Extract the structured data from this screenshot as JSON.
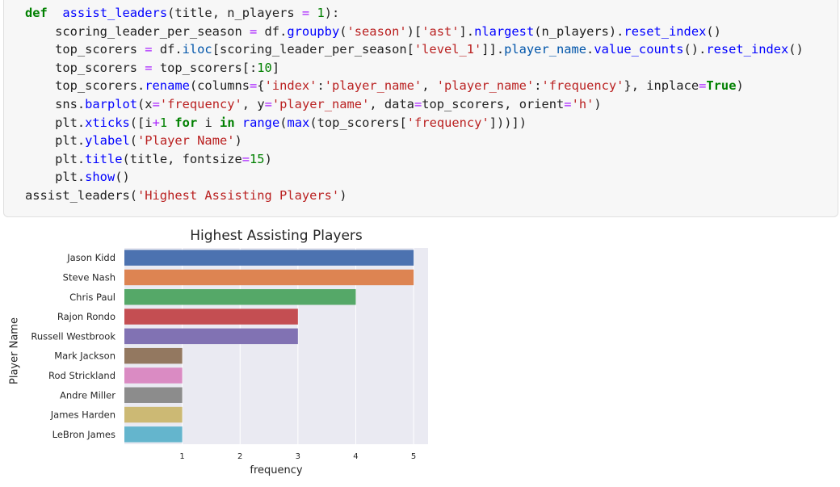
{
  "code": [
    [
      [
        "kw",
        "def"
      ],
      [
        "",
        "  "
      ],
      [
        "fn",
        "assist_leaders"
      ],
      [
        "",
        "(title, n_players "
      ],
      [
        "op",
        "="
      ],
      [
        "",
        " "
      ],
      [
        "num",
        "1"
      ],
      [
        "",
        "):"
      ]
    ],
    [
      [
        "",
        "    scoring_leader_per_season "
      ],
      [
        "op",
        "="
      ],
      [
        "",
        " df."
      ],
      [
        "fn",
        "groupby"
      ],
      [
        "",
        "("
      ],
      [
        "str",
        "'season'"
      ],
      [
        "",
        ")["
      ],
      [
        "str",
        "'ast'"
      ],
      [
        "",
        "]."
      ],
      [
        "fn",
        "nlargest"
      ],
      [
        "",
        "(n_players)."
      ],
      [
        "fn",
        "reset_index"
      ],
      [
        "",
        "()"
      ]
    ],
    [
      [
        "",
        "    top_scorers "
      ],
      [
        "op",
        "="
      ],
      [
        "",
        " df."
      ],
      [
        "attr",
        "iloc"
      ],
      [
        "",
        "[scoring_leader_per_season["
      ],
      [
        "str",
        "'level_1'"
      ],
      [
        "",
        "]]."
      ],
      [
        "attr",
        "player_name"
      ],
      [
        "",
        "."
      ],
      [
        "fn",
        "value_counts"
      ],
      [
        "",
        "()."
      ],
      [
        "fn",
        "reset_index"
      ],
      [
        "",
        "()"
      ]
    ],
    [
      [
        "",
        "    top_scorers "
      ],
      [
        "op",
        "="
      ],
      [
        "",
        " top_scorers[:"
      ],
      [
        "num",
        "10"
      ],
      [
        "",
        "]"
      ]
    ],
    [
      [
        "",
        "    top_scorers."
      ],
      [
        "fn",
        "rename"
      ],
      [
        "",
        "(columns"
      ],
      [
        "op",
        "="
      ],
      [
        "",
        "{"
      ],
      [
        "str",
        "'index'"
      ],
      [
        "",
        ":"
      ],
      [
        "str",
        "'player_name'"
      ],
      [
        "",
        ", "
      ],
      [
        "str",
        "'player_name'"
      ],
      [
        "",
        ":"
      ],
      [
        "str",
        "'frequency'"
      ],
      [
        "",
        "}, inplace"
      ],
      [
        "op",
        "="
      ],
      [
        "kw",
        "True"
      ],
      [
        "",
        ")"
      ]
    ],
    [
      [
        "",
        "    sns."
      ],
      [
        "fn",
        "barplot"
      ],
      [
        "",
        "(x"
      ],
      [
        "op",
        "="
      ],
      [
        "str",
        "'frequency'"
      ],
      [
        "",
        ", y"
      ],
      [
        "op",
        "="
      ],
      [
        "str",
        "'player_name'"
      ],
      [
        "",
        ", data"
      ],
      [
        "op",
        "="
      ],
      [
        "",
        "top_scorers, orient"
      ],
      [
        "op",
        "="
      ],
      [
        "str",
        "'h'"
      ],
      [
        "",
        ")"
      ]
    ],
    [
      [
        "",
        "    plt."
      ],
      [
        "fn",
        "xticks"
      ],
      [
        "",
        "([i"
      ],
      [
        "op",
        "+"
      ],
      [
        "num",
        "1"
      ],
      [
        "",
        " "
      ],
      [
        "kw",
        "for"
      ],
      [
        "",
        "",
        " "
      ],
      [
        "",
        "i "
      ],
      [
        "kw",
        "in"
      ],
      [
        "",
        " "
      ],
      [
        "fn",
        "range"
      ],
      [
        "",
        "("
      ],
      [
        "fn",
        "max"
      ],
      [
        "",
        "(top_scorers["
      ],
      [
        "str",
        "'frequency'"
      ],
      [
        "",
        "]))])"
      ]
    ],
    [
      [
        "",
        "    plt."
      ],
      [
        "fn",
        "ylabel"
      ],
      [
        "",
        "("
      ],
      [
        "str",
        "'Player Name'"
      ],
      [
        "",
        ")"
      ]
    ],
    [
      [
        "",
        "    plt."
      ],
      [
        "fn",
        "title"
      ],
      [
        "",
        "(title, fontsize"
      ],
      [
        "op",
        "="
      ],
      [
        "num",
        "15"
      ],
      [
        "",
        ")"
      ]
    ],
    [
      [
        "",
        "    plt."
      ],
      [
        "fn",
        "show"
      ],
      [
        "",
        "()"
      ]
    ],
    [
      [
        "",
        "assist_leaders("
      ],
      [
        "str",
        "'Highest Assisting Players'"
      ],
      [
        "",
        ")"
      ]
    ]
  ],
  "chart_data": {
    "type": "bar",
    "orientation": "horizontal",
    "title": "Highest Assisting Players",
    "xlabel": "frequency",
    "ylabel": "Player Name",
    "xlim": [
      0,
      5.25
    ],
    "xticks": [
      1,
      2,
      3,
      4,
      5
    ],
    "grid": true,
    "categories": [
      "Jason Kidd",
      "Steve Nash",
      "Chris Paul",
      "Rajon Rondo",
      "Russell Westbrook",
      "Mark Jackson",
      "Rod Strickland",
      "Andre Miller",
      "James Harden",
      "LeBron James"
    ],
    "values": [
      5,
      5,
      4,
      3,
      3,
      1,
      1,
      1,
      1,
      1
    ],
    "colors": [
      "#4c72b0",
      "#dd8452",
      "#55a868",
      "#c44e52",
      "#8172b3",
      "#937860",
      "#da8bc3",
      "#8c8c8c",
      "#ccb974",
      "#64b5cd"
    ],
    "background": "#eaeaf2"
  }
}
